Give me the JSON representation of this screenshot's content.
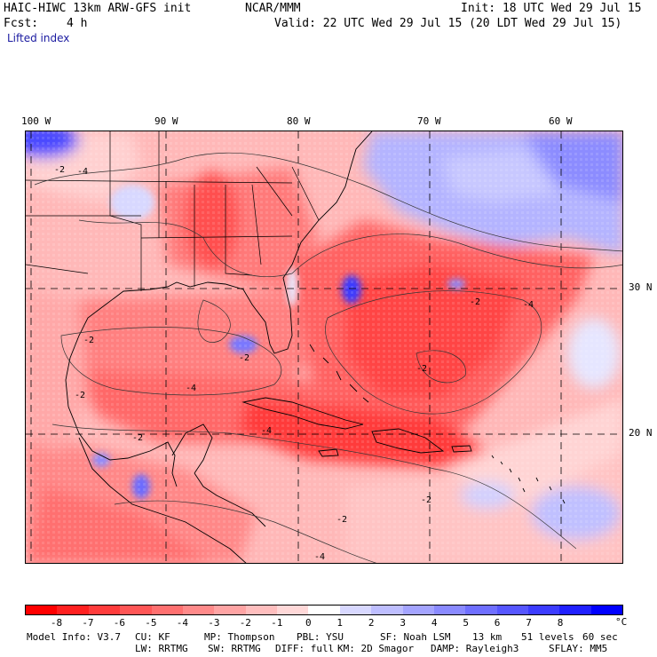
{
  "header": {
    "model_title": "HAIC-HIWC 13km ARW-GFS init",
    "org": "NCAR/MMM",
    "init": "Init: 18 UTC Wed 29 Jul 15",
    "fcst_label": "Fcst:",
    "fcst_value": "4 h",
    "valid": "Valid: 22 UTC Wed 29 Jul 15 (20 LDT Wed 29 Jul 15)",
    "field": "Lifted index"
  },
  "map": {
    "lon_labels": [
      "100 W",
      "90 W",
      "80 W",
      "70 W",
      "60 W"
    ],
    "lat_labels": [
      "30 N",
      "20 N"
    ],
    "contour_labels": [
      "-2",
      "-4",
      "-2",
      "-4",
      "-2",
      "-2",
      "-2",
      "-4",
      "-2",
      "-2",
      "-4",
      "-2",
      "-2",
      "-4"
    ]
  },
  "colorbar": {
    "labels": [
      "-8",
      "-7",
      "-6",
      "-5",
      "-4",
      "-3",
      "-2",
      "-1",
      "0",
      "1",
      "2",
      "3",
      "4",
      "5",
      "6",
      "7",
      "8"
    ],
    "unit": "°C",
    "colors": [
      "#ff0000",
      "#ff2020",
      "#ff3c3c",
      "#ff5656",
      "#ff7070",
      "#ff8a8a",
      "#ffa4a4",
      "#ffbebe",
      "#ffd8d8",
      "#ffffff",
      "#d8d8ff",
      "#bebeff",
      "#a4a4ff",
      "#8a8aff",
      "#6f6fff",
      "#5656ff",
      "#3c3cff",
      "#2020ff",
      "#0000ff"
    ]
  },
  "footer": {
    "line1": [
      "Model Info: V3.7",
      "CU: KF",
      "MP: Thompson",
      "PBL: YSU",
      "SF: Noah LSM",
      "13 km",
      "51 levels",
      "60 sec"
    ],
    "line2": [
      "LW: RRTMG",
      "SW: RRTMG",
      "DIFF: full",
      "KM: 2D Smagor",
      "DAMP: Rayleigh3",
      "SFLAY: MM5"
    ]
  }
}
